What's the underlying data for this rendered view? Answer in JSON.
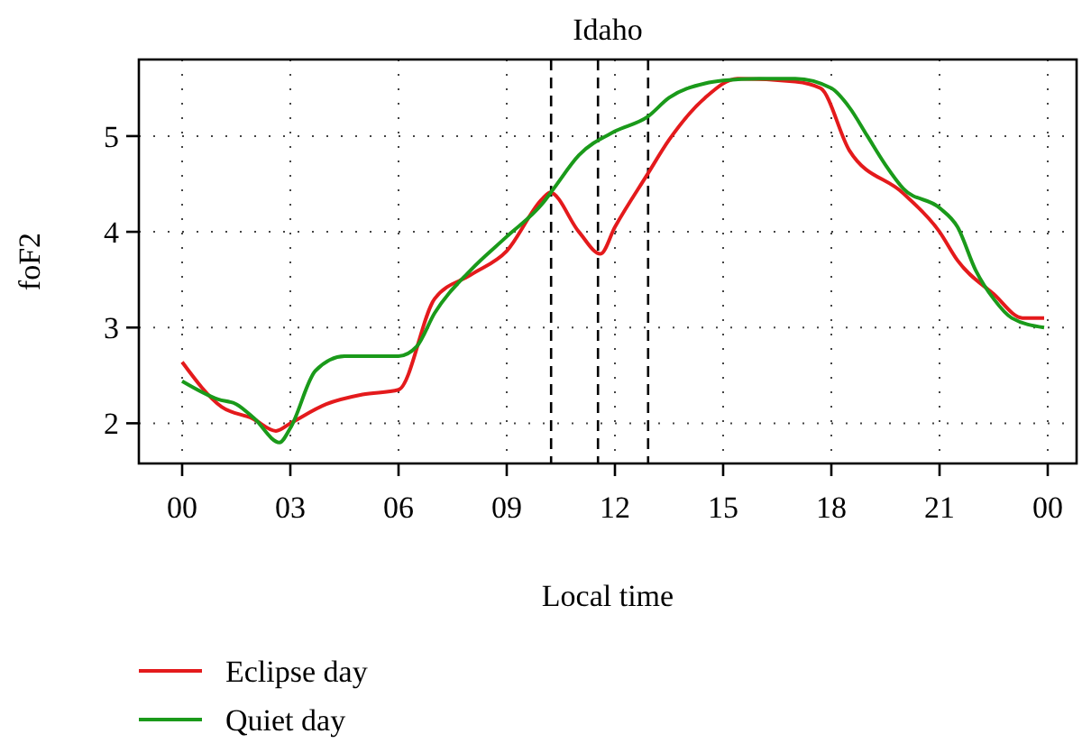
{
  "chart_data": {
    "type": "line",
    "title": "Idaho",
    "xlabel": "Local time",
    "ylabel": "foF2",
    "xlim": [
      -1.2,
      24.8
    ],
    "ylim": [
      1.58,
      5.8
    ],
    "xticks": [
      {
        "value": 0,
        "label": "00"
      },
      {
        "value": 3,
        "label": "03"
      },
      {
        "value": 6,
        "label": "06"
      },
      {
        "value": 9,
        "label": "09"
      },
      {
        "value": 12,
        "label": "12"
      },
      {
        "value": 15,
        "label": "15"
      },
      {
        "value": 18,
        "label": "18"
      },
      {
        "value": 21,
        "label": "21"
      },
      {
        "value": 24,
        "label": "00"
      }
    ],
    "yticks": [
      2,
      3,
      4,
      5
    ],
    "grid": true,
    "legend": "bottom left",
    "line_style": "solid",
    "ref_lines": [
      {
        "axis": "x",
        "value": 10.23,
        "line_style": "dashed",
        "color": "#000000"
      },
      {
        "axis": "x",
        "value": 11.53,
        "line_style": "dashed",
        "color": "#000000"
      },
      {
        "axis": "x",
        "value": 12.92,
        "line_style": "dashed",
        "color": "#000000"
      }
    ],
    "series": [
      {
        "name": "Eclipse day",
        "color": "#e41a1c",
        "x": [
          0,
          1.1,
          1.95,
          2.6,
          3,
          4,
          5,
          6,
          7,
          8,
          9,
          10,
          10.2,
          11,
          11.6,
          12,
          12.9,
          13.5,
          14.5,
          15.4,
          17,
          17.7,
          18.5,
          20,
          21,
          21.5,
          22.5,
          23.3,
          23.9
        ],
        "values": [
          2.64,
          2.17,
          2.05,
          1.92,
          2.0,
          2.2,
          2.3,
          2.35,
          3.3,
          3.55,
          3.8,
          4.35,
          4.41,
          4.0,
          3.77,
          4.05,
          4.6,
          4.96,
          5.4,
          5.6,
          5.57,
          5.5,
          4.85,
          4.4,
          4.0,
          3.7,
          3.35,
          3.1,
          3.1
        ]
      },
      {
        "name": "Quiet day",
        "color": "#1a9a1a",
        "x": [
          0,
          1,
          1.5,
          2,
          2.7,
          3,
          3.7,
          4.5,
          6,
          6.5,
          7,
          8,
          9,
          10,
          10.3,
          11,
          12,
          12.9,
          13.5,
          14.5,
          15,
          16,
          17,
          18,
          18.5,
          19,
          19.5,
          20,
          21,
          21.5,
          22,
          22.5,
          23,
          23.9
        ],
        "values": [
          2.44,
          2.25,
          2.2,
          2.05,
          1.8,
          1.95,
          2.55,
          2.7,
          2.7,
          2.8,
          3.15,
          3.6,
          3.95,
          4.3,
          4.45,
          4.8,
          5.05,
          5.2,
          5.4,
          5.55,
          5.58,
          5.6,
          5.6,
          5.5,
          5.3,
          5.0,
          4.7,
          4.45,
          4.25,
          4.05,
          3.6,
          3.3,
          3.1,
          3.0
        ]
      }
    ]
  }
}
